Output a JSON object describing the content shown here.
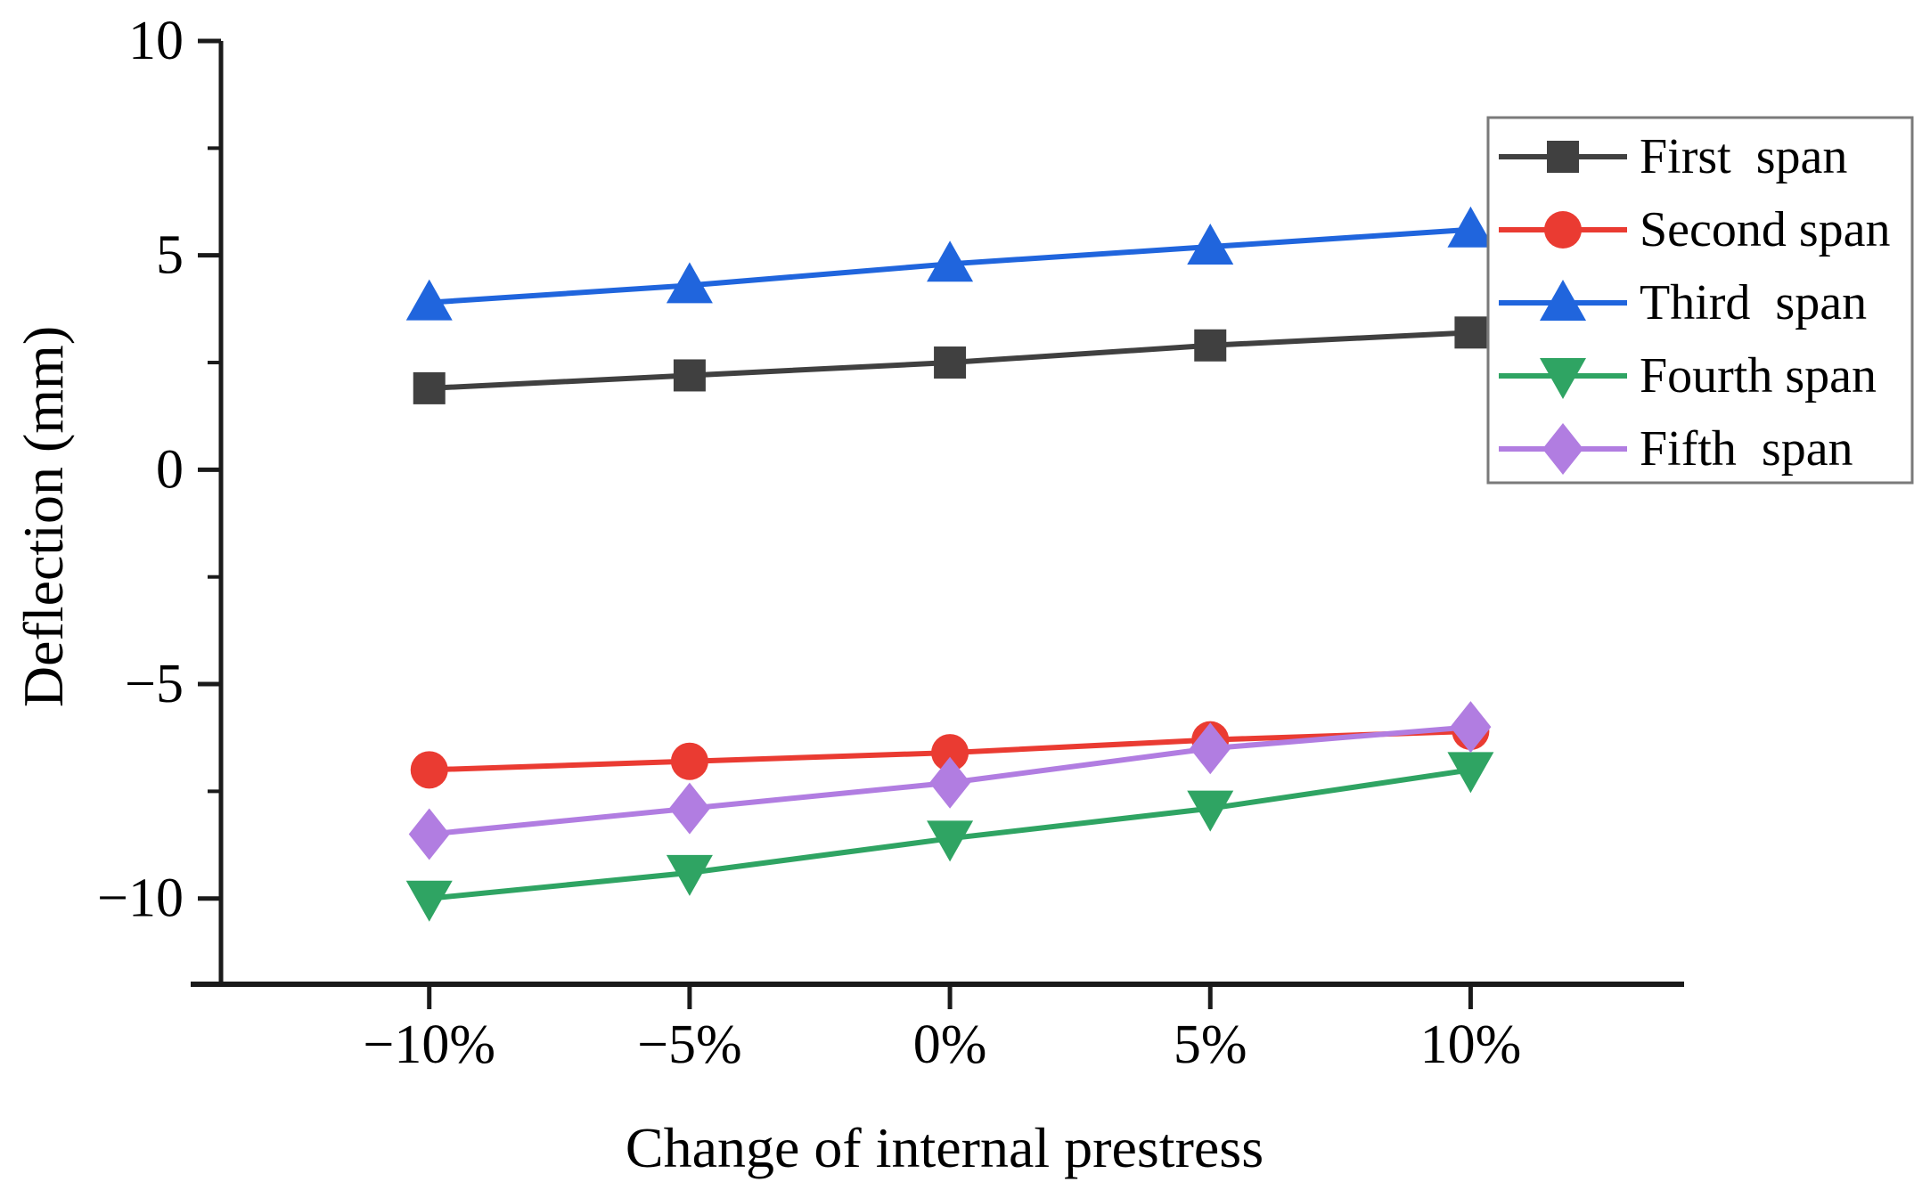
{
  "chart_data": {
    "type": "line",
    "title": "",
    "xlabel": "Change of internal prestress",
    "ylabel": "Deflection (mm)",
    "categories": [
      "−10%",
      "−5%",
      "0%",
      "5%",
      "10%"
    ],
    "x_values_percent": [
      -10,
      -5,
      0,
      5,
      10
    ],
    "series": [
      {
        "name": "First  span",
        "marker": "square",
        "color": "#404040",
        "values": [
          1.9,
          2.2,
          2.5,
          2.9,
          3.2
        ]
      },
      {
        "name": "Second span",
        "marker": "circle",
        "color": "#ea3b32",
        "values": [
          -7.0,
          -6.8,
          -6.6,
          -6.3,
          -6.1
        ]
      },
      {
        "name": "Third  span",
        "marker": "triangle-up",
        "color": "#2065dd",
        "values": [
          3.9,
          4.3,
          4.8,
          5.2,
          5.6
        ]
      },
      {
        "name": "Fourth span",
        "marker": "triangle-down",
        "color": "#2fa463",
        "values": [
          -10.0,
          -9.4,
          -8.6,
          -7.9,
          -7.0
        ]
      },
      {
        "name": "Fifth  span",
        "marker": "diamond",
        "color": "#b17de1",
        "values": [
          -8.5,
          -7.9,
          -7.3,
          -6.5,
          -6.0
        ]
      }
    ],
    "ylim": [
      -12,
      10
    ],
    "xlim_percent": [
      -14.0,
      14.1
    ],
    "yticks_major": [
      10,
      5,
      0,
      -5,
      -10
    ],
    "ytick_labels": [
      "10",
      "5",
      "0",
      "−5",
      "−10"
    ],
    "yticks_minor": [
      7.5,
      2.5,
      -2.5,
      -7.5
    ],
    "grid": false,
    "legend": {
      "position": "top-right",
      "entries": [
        "First  span",
        "Second span",
        "Third  span",
        "Fourth span",
        "Fifth  span"
      ],
      "border_color": "#7a7a7a",
      "background": "#ffffff"
    }
  },
  "colors": {
    "axis": "#1a1a1a",
    "text": "#000000",
    "background": "#ffffff"
  }
}
